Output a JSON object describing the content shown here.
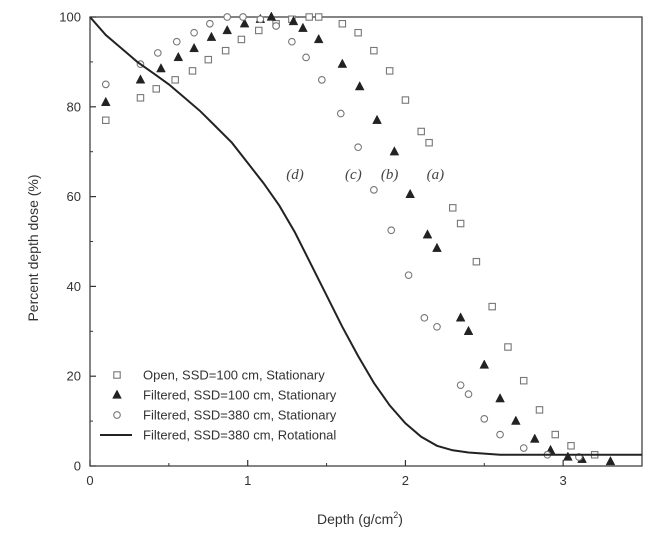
{
  "chart_data": {
    "type": "scatter",
    "xlabel": "Depth (g/cm²)",
    "xlabel_main": "Depth (g/cm",
    "xlabel_sup": "2",
    "xlabel_end": ")",
    "ylabel": "Percent depth dose (%)",
    "xlim": [
      0,
      3.5
    ],
    "ylim": [
      0,
      100
    ],
    "x_ticks": [
      {
        "value": 0,
        "label": "0"
      },
      {
        "value": 1,
        "label": "1"
      },
      {
        "value": 2,
        "label": "2"
      },
      {
        "value": 3,
        "label": "3"
      }
    ],
    "y_ticks": [
      {
        "value": 0,
        "label": "0"
      },
      {
        "value": 20,
        "label": "20"
      },
      {
        "value": 40,
        "label": "40"
      },
      {
        "value": 60,
        "label": "60"
      },
      {
        "value": 80,
        "label": "80"
      },
      {
        "value": 100,
        "label": "100"
      }
    ],
    "grid": false,
    "legend_position": "bottom-left",
    "series": [
      {
        "name": "Open, SSD=100 cm, Stationary",
        "marker": "open-square",
        "color": "#777777",
        "points": [
          [
            0.1,
            77
          ],
          [
            0.32,
            82
          ],
          [
            0.42,
            84
          ],
          [
            0.54,
            86
          ],
          [
            0.65,
            88
          ],
          [
            0.75,
            90.5
          ],
          [
            0.86,
            92.5
          ],
          [
            0.96,
            95
          ],
          [
            1.07,
            97
          ],
          [
            1.18,
            98.5
          ],
          [
            1.28,
            99.5
          ],
          [
            1.39,
            100
          ],
          [
            1.45,
            100
          ],
          [
            1.6,
            98.5
          ],
          [
            1.7,
            96.5
          ],
          [
            1.8,
            92.5
          ],
          [
            1.9,
            88
          ],
          [
            2.0,
            81.5
          ],
          [
            2.1,
            74.5
          ],
          [
            2.15,
            72
          ],
          [
            2.3,
            57.5
          ],
          [
            2.35,
            54
          ],
          [
            2.45,
            45.5
          ],
          [
            2.55,
            35.5
          ],
          [
            2.65,
            26.5
          ],
          [
            2.75,
            19
          ],
          [
            2.85,
            12.5
          ],
          [
            2.95,
            7
          ],
          [
            3.05,
            4.5
          ],
          [
            3.2,
            2.5
          ]
        ]
      },
      {
        "name": "Filtered, SSD=100 cm, Stationary",
        "marker": "filled-triangle",
        "color": "#222222",
        "points": [
          [
            0.1,
            81
          ],
          [
            0.32,
            86
          ],
          [
            0.45,
            88.5
          ],
          [
            0.56,
            91
          ],
          [
            0.66,
            93
          ],
          [
            0.77,
            95.5
          ],
          [
            0.87,
            97
          ],
          [
            0.98,
            98.5
          ],
          [
            1.08,
            99.5
          ],
          [
            1.15,
            100
          ],
          [
            1.29,
            99
          ],
          [
            1.35,
            97.5
          ],
          [
            1.45,
            95
          ],
          [
            1.6,
            89.5
          ],
          [
            1.71,
            84.5
          ],
          [
            1.82,
            77
          ],
          [
            1.93,
            70
          ],
          [
            2.03,
            60.5
          ],
          [
            2.14,
            51.5
          ],
          [
            2.2,
            48.5
          ],
          [
            2.35,
            33
          ],
          [
            2.4,
            30
          ],
          [
            2.5,
            22.5
          ],
          [
            2.6,
            15
          ],
          [
            2.7,
            10
          ],
          [
            2.82,
            6
          ],
          [
            2.92,
            3.5
          ],
          [
            3.03,
            2
          ],
          [
            3.12,
            1.5
          ],
          [
            3.3,
            1
          ]
        ]
      },
      {
        "name": "Filtered, SSD=380 cm, Stationary",
        "marker": "open-circle",
        "color": "#777777",
        "points": [
          [
            0.1,
            85
          ],
          [
            0.32,
            89.5
          ],
          [
            0.43,
            92
          ],
          [
            0.55,
            94.5
          ],
          [
            0.66,
            96.5
          ],
          [
            0.76,
            98.5
          ],
          [
            0.87,
            100
          ],
          [
            0.97,
            100
          ],
          [
            1.08,
            99.5
          ],
          [
            1.18,
            98
          ],
          [
            1.28,
            94.5
          ],
          [
            1.37,
            91
          ],
          [
            1.47,
            86
          ],
          [
            1.59,
            78.5
          ],
          [
            1.7,
            71
          ],
          [
            1.8,
            61.5
          ],
          [
            1.91,
            52.5
          ],
          [
            2.02,
            42.5
          ],
          [
            2.12,
            33
          ],
          [
            2.2,
            31
          ],
          [
            2.35,
            18
          ],
          [
            2.4,
            16
          ],
          [
            2.5,
            10.5
          ],
          [
            2.6,
            7
          ],
          [
            2.75,
            4
          ],
          [
            2.9,
            2.5
          ],
          [
            3.1,
            2
          ]
        ]
      },
      {
        "name": "Filtered, SSD=380 cm, Rotational",
        "marker": "line",
        "color": "#222222",
        "points": [
          [
            0,
            100
          ],
          [
            0.1,
            96
          ],
          [
            0.2,
            93
          ],
          [
            0.3,
            90
          ],
          [
            0.4,
            87.5
          ],
          [
            0.5,
            85
          ],
          [
            0.6,
            82
          ],
          [
            0.7,
            79
          ],
          [
            0.8,
            75.5
          ],
          [
            0.9,
            72
          ],
          [
            1.0,
            67.5
          ],
          [
            1.1,
            63
          ],
          [
            1.2,
            58
          ],
          [
            1.3,
            52
          ],
          [
            1.4,
            45
          ],
          [
            1.5,
            38
          ],
          [
            1.6,
            31
          ],
          [
            1.7,
            24.5
          ],
          [
            1.8,
            18.5
          ],
          [
            1.9,
            13.5
          ],
          [
            2.0,
            9.5
          ],
          [
            2.1,
            6.5
          ],
          [
            2.2,
            4.5
          ],
          [
            2.3,
            3.5
          ],
          [
            2.4,
            3
          ],
          [
            2.6,
            2.5
          ],
          [
            2.8,
            2.5
          ],
          [
            3.0,
            2.5
          ],
          [
            3.5,
            2.5
          ]
        ]
      }
    ],
    "annotations": [
      {
        "text": "(d)",
        "x": 1.3,
        "y": 65
      },
      {
        "text": "(c)",
        "x": 1.67,
        "y": 65
      },
      {
        "text": "(b)",
        "x": 1.9,
        "y": 65
      },
      {
        "text": "(a)",
        "x": 2.19,
        "y": 65
      }
    ]
  }
}
